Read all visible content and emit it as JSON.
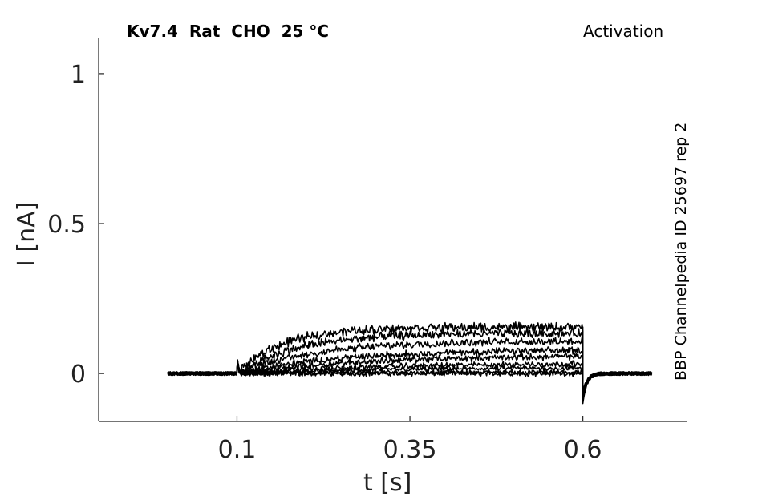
{
  "header": {
    "title_left": "Kv7.4  Rat  CHO  25 °C",
    "title_right": "Activation"
  },
  "side_label": "BBP Channelpedia ID 25697 rep 2",
  "chart_data": {
    "type": "line",
    "xlabel": "t [s]",
    "ylabel": "I [nA]",
    "xlim": [
      -0.1,
      0.75
    ],
    "ylim": [
      -0.16,
      1.12
    ],
    "xticks": [
      0.1,
      0.35,
      0.6
    ],
    "xtick_labels": [
      "0.1",
      "0.35",
      "0.6"
    ],
    "yticks": [
      0,
      0.5,
      1
    ],
    "ytick_labels": [
      "0",
      "0.5",
      "1"
    ],
    "grid": false,
    "stimulus": {
      "start": 0.1,
      "end": 0.6
    },
    "recording_range": [
      -0.0,
      0.7
    ],
    "color": "#000000",
    "series": [
      {
        "step_plateau": 0.0
      },
      {
        "step_plateau": 0.005
      },
      {
        "step_plateau": 0.02
      },
      {
        "step_plateau": 0.035
      },
      {
        "step_plateau": 0.06
      },
      {
        "step_plateau": 0.08
      },
      {
        "step_plateau": 0.11
      },
      {
        "step_plateau": 0.135
      },
      {
        "step_plateau": 0.155
      }
    ]
  }
}
